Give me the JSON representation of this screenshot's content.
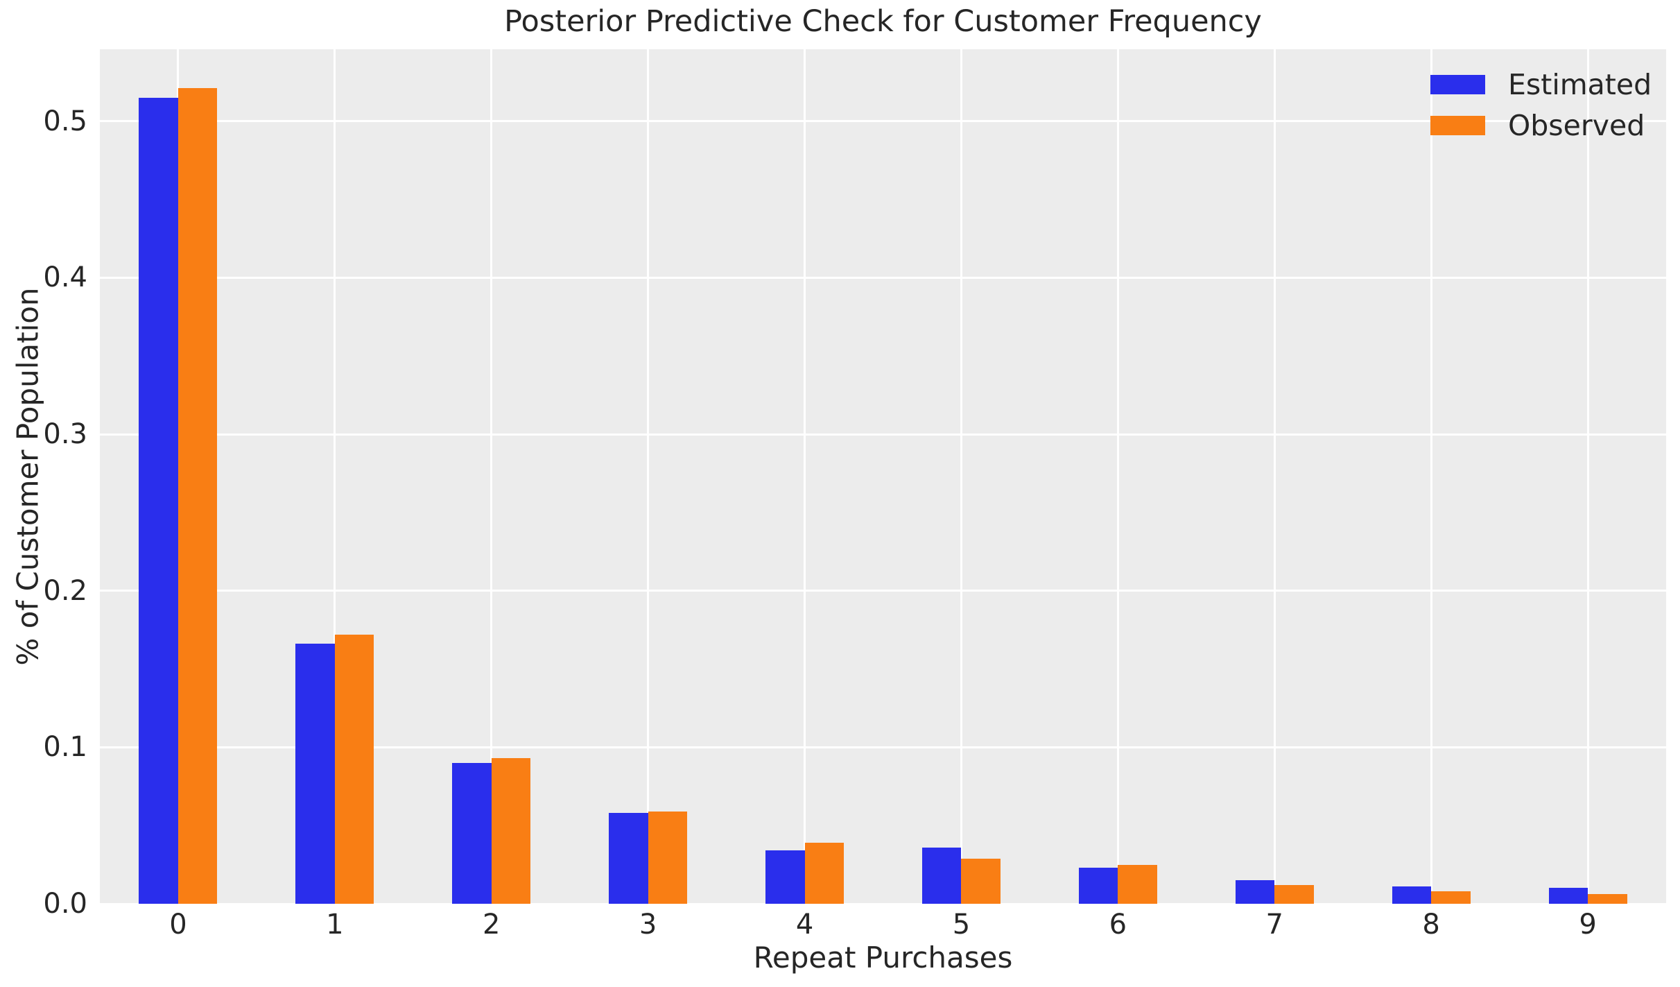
{
  "chart_data": {
    "type": "bar",
    "title": "Posterior Predictive Check for Customer Frequency",
    "xlabel": "Repeat Purchases",
    "ylabel": "% of Customer Population",
    "categories": [
      "0",
      "1",
      "2",
      "3",
      "4",
      "5",
      "6",
      "7",
      "8",
      "9"
    ],
    "series": [
      {
        "name": "Estimated",
        "color": "#2a2eec",
        "values": [
          0.515,
          0.166,
          0.09,
          0.058,
          0.034,
          0.036,
          0.023,
          0.015,
          0.011,
          0.01
        ]
      },
      {
        "name": "Observed",
        "color": "#f97e14",
        "values": [
          0.521,
          0.172,
          0.093,
          0.059,
          0.039,
          0.029,
          0.025,
          0.012,
          0.008,
          0.006
        ]
      }
    ],
    "yticks": [
      0.0,
      0.1,
      0.2,
      0.3,
      0.4,
      0.5
    ],
    "ytick_labels": [
      "0.0",
      "0.1",
      "0.2",
      "0.3",
      "0.4",
      "0.5"
    ],
    "ylim": [
      0,
      0.546
    ],
    "grid": true,
    "legend_position": "upper right",
    "colors": {
      "plot_bg": "#ececec",
      "grid": "#ffffff",
      "text": "#262626"
    }
  }
}
